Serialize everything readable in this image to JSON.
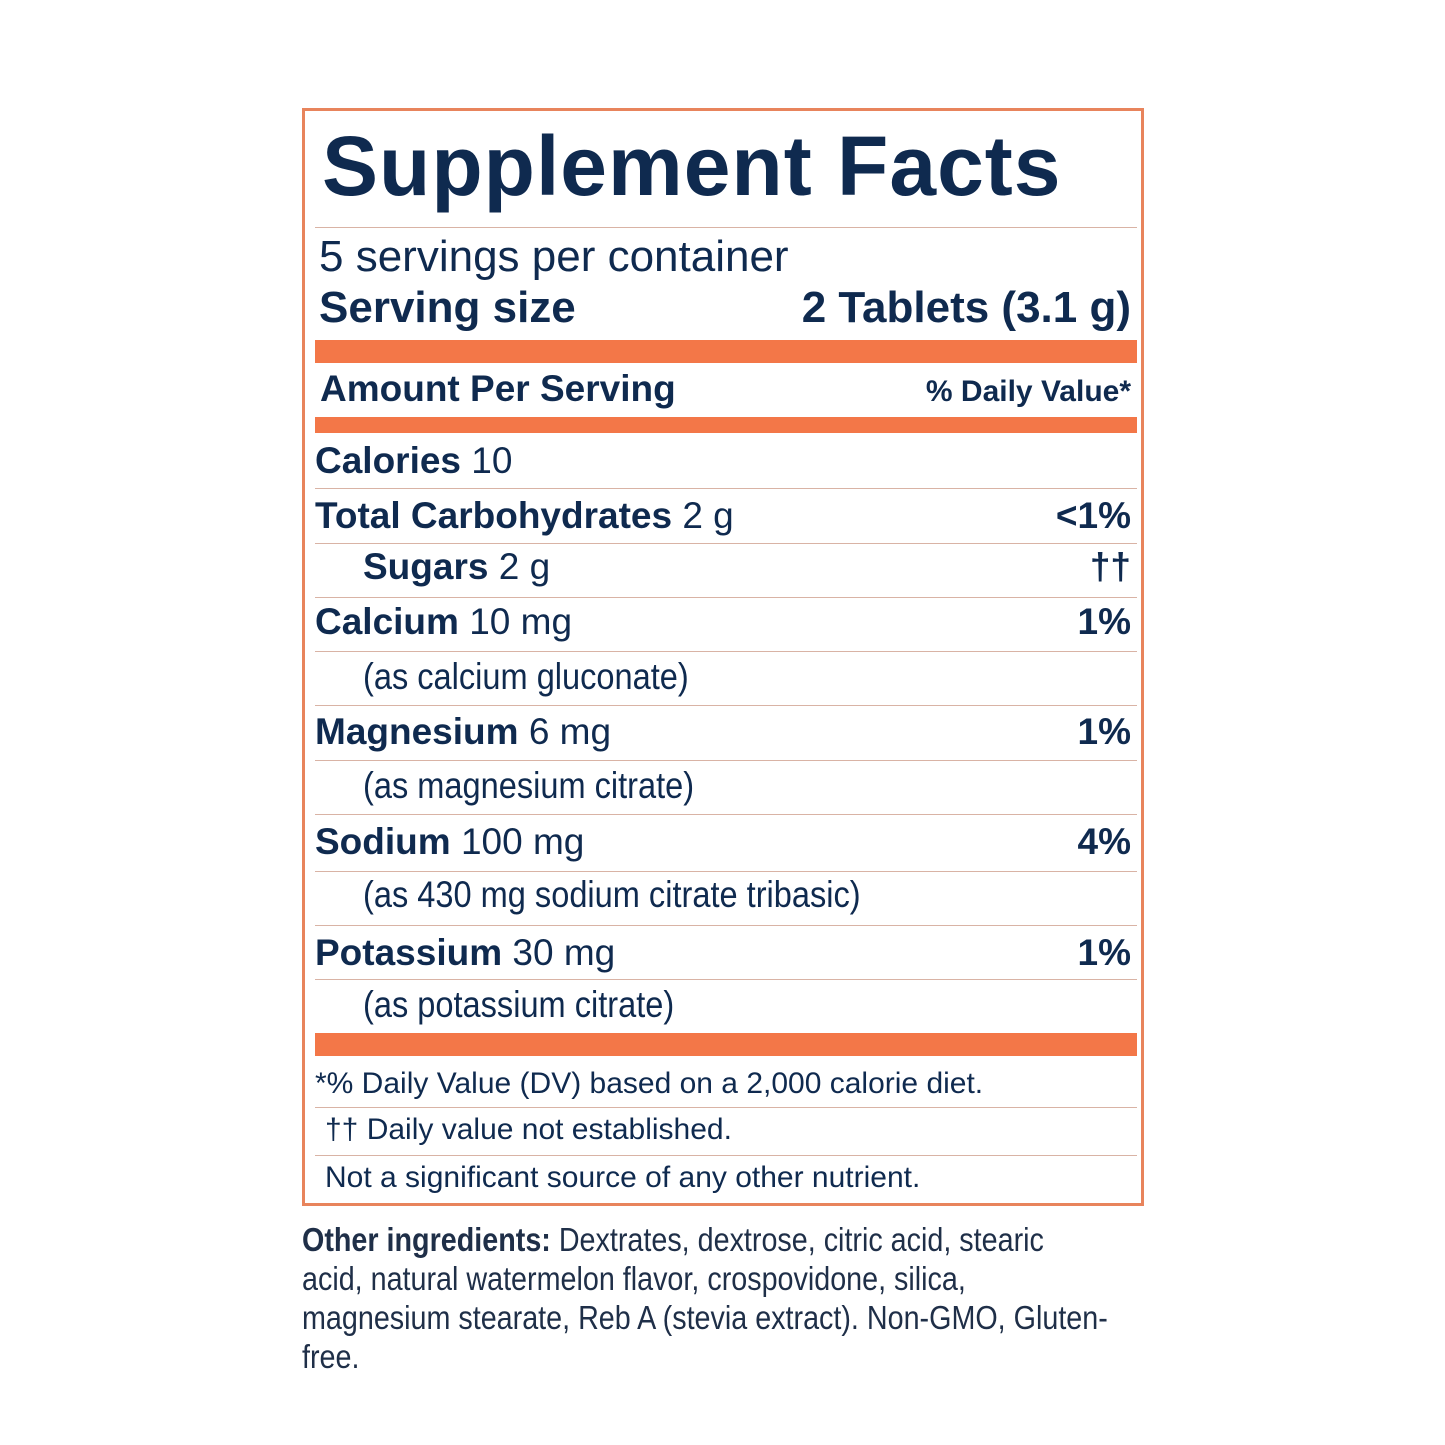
{
  "colors": {
    "accent": "#f37748",
    "text": "#0f2a4f"
  },
  "title": "Supplement Facts",
  "servings_per_container": "5 servings per container",
  "serving_size": {
    "label": "Serving size",
    "value": "2 Tablets (3.1 g)"
  },
  "header": {
    "amount": "Amount Per Serving",
    "dv": "% Daily Value*"
  },
  "rows": [
    {
      "name": "Calories",
      "amount": "10",
      "dv": ""
    },
    {
      "name": "Total Carbohydrates",
      "amount": "2 g",
      "dv": "<1%"
    },
    {
      "name": "Sugars",
      "amount": "2 g",
      "dv": "††"
    },
    {
      "name": "Calcium",
      "amount": "10 mg",
      "dv": "1%",
      "source": "(as calcium gluconate)"
    },
    {
      "name": "Magnesium",
      "amount": "6 mg",
      "dv": "1%",
      "source": "(as magnesium citrate)"
    },
    {
      "name": "Sodium",
      "amount": "100 mg",
      "dv": "4%",
      "source": "(as 430 mg sodium citrate tribasic)"
    },
    {
      "name": "Potassium",
      "amount": "30 mg",
      "dv": "1%",
      "source": "(as potassium citrate)"
    }
  ],
  "footnotes": [
    "*% Daily Value (DV) based on a 2,000 calorie diet.",
    "†† Daily value not established.",
    "Not a significant source of any other nutrient."
  ],
  "other_ingredients": {
    "label": "Other ingredients:",
    "text": " Dextrates, dextrose, citric acid, stearic acid, natural watermelon flavor, crospovidone, silica, magnesium stearate, Reb A (stevia extract). Non-GMO, Gluten-free."
  }
}
